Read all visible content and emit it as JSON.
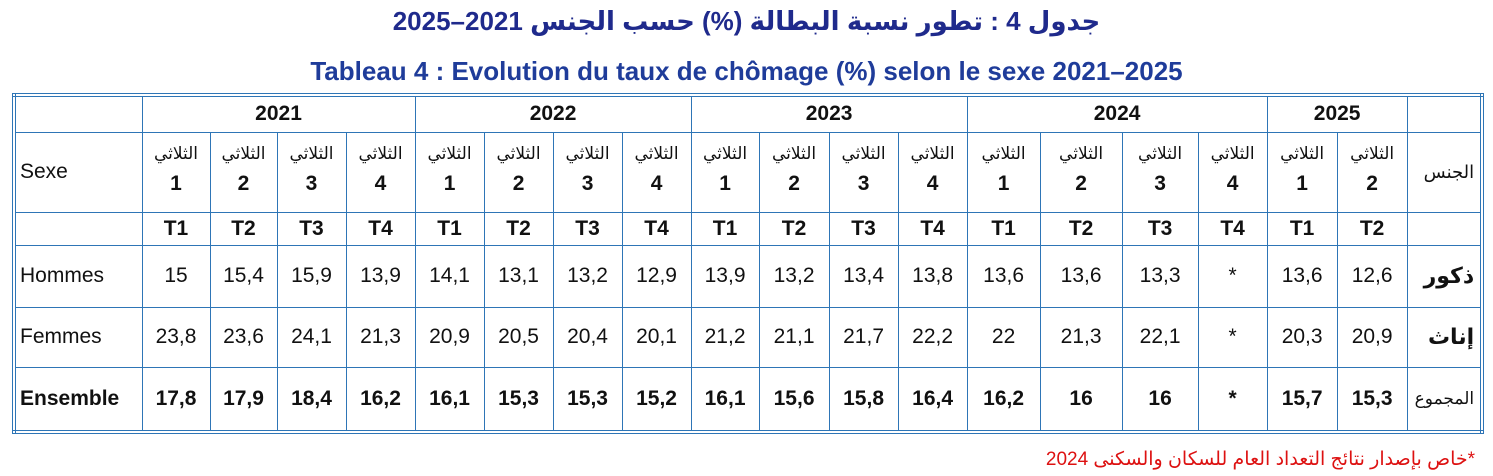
{
  "title_ar": "جدول 4 : تطور نسبة البطالة (%) حسب الجنس 2021–2025",
  "title_fr": "Tableau 4 : Evolution du taux de chômage (%) selon le sexe 2021–2025",
  "table": {
    "header_left": "Sexe",
    "header_right": "الجنس",
    "years": [
      "2021",
      "2022",
      "2023",
      "2024",
      "2025"
    ],
    "quarters": [
      {
        "ar": "الثلاثي",
        "num": "1",
        "code": "T1"
      },
      {
        "ar": "الثلاثي",
        "num": "2",
        "code": "T2"
      },
      {
        "ar": "الثلاثي",
        "num": "3",
        "code": "T3"
      },
      {
        "ar": "الثلاثي",
        "num": "4",
        "code": "T4"
      },
      {
        "ar": "الثلاثي",
        "num": "1",
        "code": "T1"
      },
      {
        "ar": "الثلاثي",
        "num": "2",
        "code": "T2"
      },
      {
        "ar": "الثلاثي",
        "num": "3",
        "code": "T3"
      },
      {
        "ar": "الثلاثي",
        "num": "4",
        "code": "T4"
      },
      {
        "ar": "الثلاثي",
        "num": "1",
        "code": "T1"
      },
      {
        "ar": "الثلاثي",
        "num": "2",
        "code": "T2"
      },
      {
        "ar": "الثلاثي",
        "num": "3",
        "code": "T3"
      },
      {
        "ar": "الثلاثي",
        "num": "4",
        "code": "T4"
      },
      {
        "ar": "الثلاثي",
        "num": "1",
        "code": "T1"
      },
      {
        "ar": "الثلاثي",
        "num": "2",
        "code": "T2"
      },
      {
        "ar": "الثلاثي",
        "num": "3",
        "code": "T3"
      },
      {
        "ar": "الثلاثي",
        "num": "4",
        "code": "T4"
      },
      {
        "ar": "الثلاثي",
        "num": "1",
        "code": "T1"
      },
      {
        "ar": "الثلاثي",
        "num": "2",
        "code": "T2"
      }
    ],
    "rows": [
      {
        "fr": "Hommes",
        "ar": "ذكور",
        "values": [
          "15",
          "15,4",
          "15,9",
          "13,9",
          "14,1",
          "13,1",
          "13,2",
          "12,9",
          "13,9",
          "13,2",
          "13,4",
          "13,8",
          "13,6",
          "13,6",
          "13,3",
          "*",
          "13,6",
          "12,6"
        ]
      },
      {
        "fr": "Femmes",
        "ar": "إناث",
        "values": [
          "23,8",
          "23,6",
          "24,1",
          "21,3",
          "20,9",
          "20,5",
          "20,4",
          "20,1",
          "21,2",
          "21,1",
          "21,7",
          "22,2",
          "22",
          "21,3",
          "22,1",
          "*",
          "20,3",
          "20,9"
        ]
      },
      {
        "fr": "Ensemble",
        "ar": "المجموع",
        "values": [
          "17,8",
          "17,9",
          "18,4",
          "16,2",
          "16,1",
          "15,3",
          "15,3",
          "15,2",
          "16,1",
          "15,6",
          "15,8",
          "16,4",
          "16,2",
          "16",
          "16",
          "*",
          "15,7",
          "15,3"
        ]
      }
    ]
  },
  "footnote": "*خاص بإصدار نتائج التعداد العام للسكان والسكنى 2024"
}
